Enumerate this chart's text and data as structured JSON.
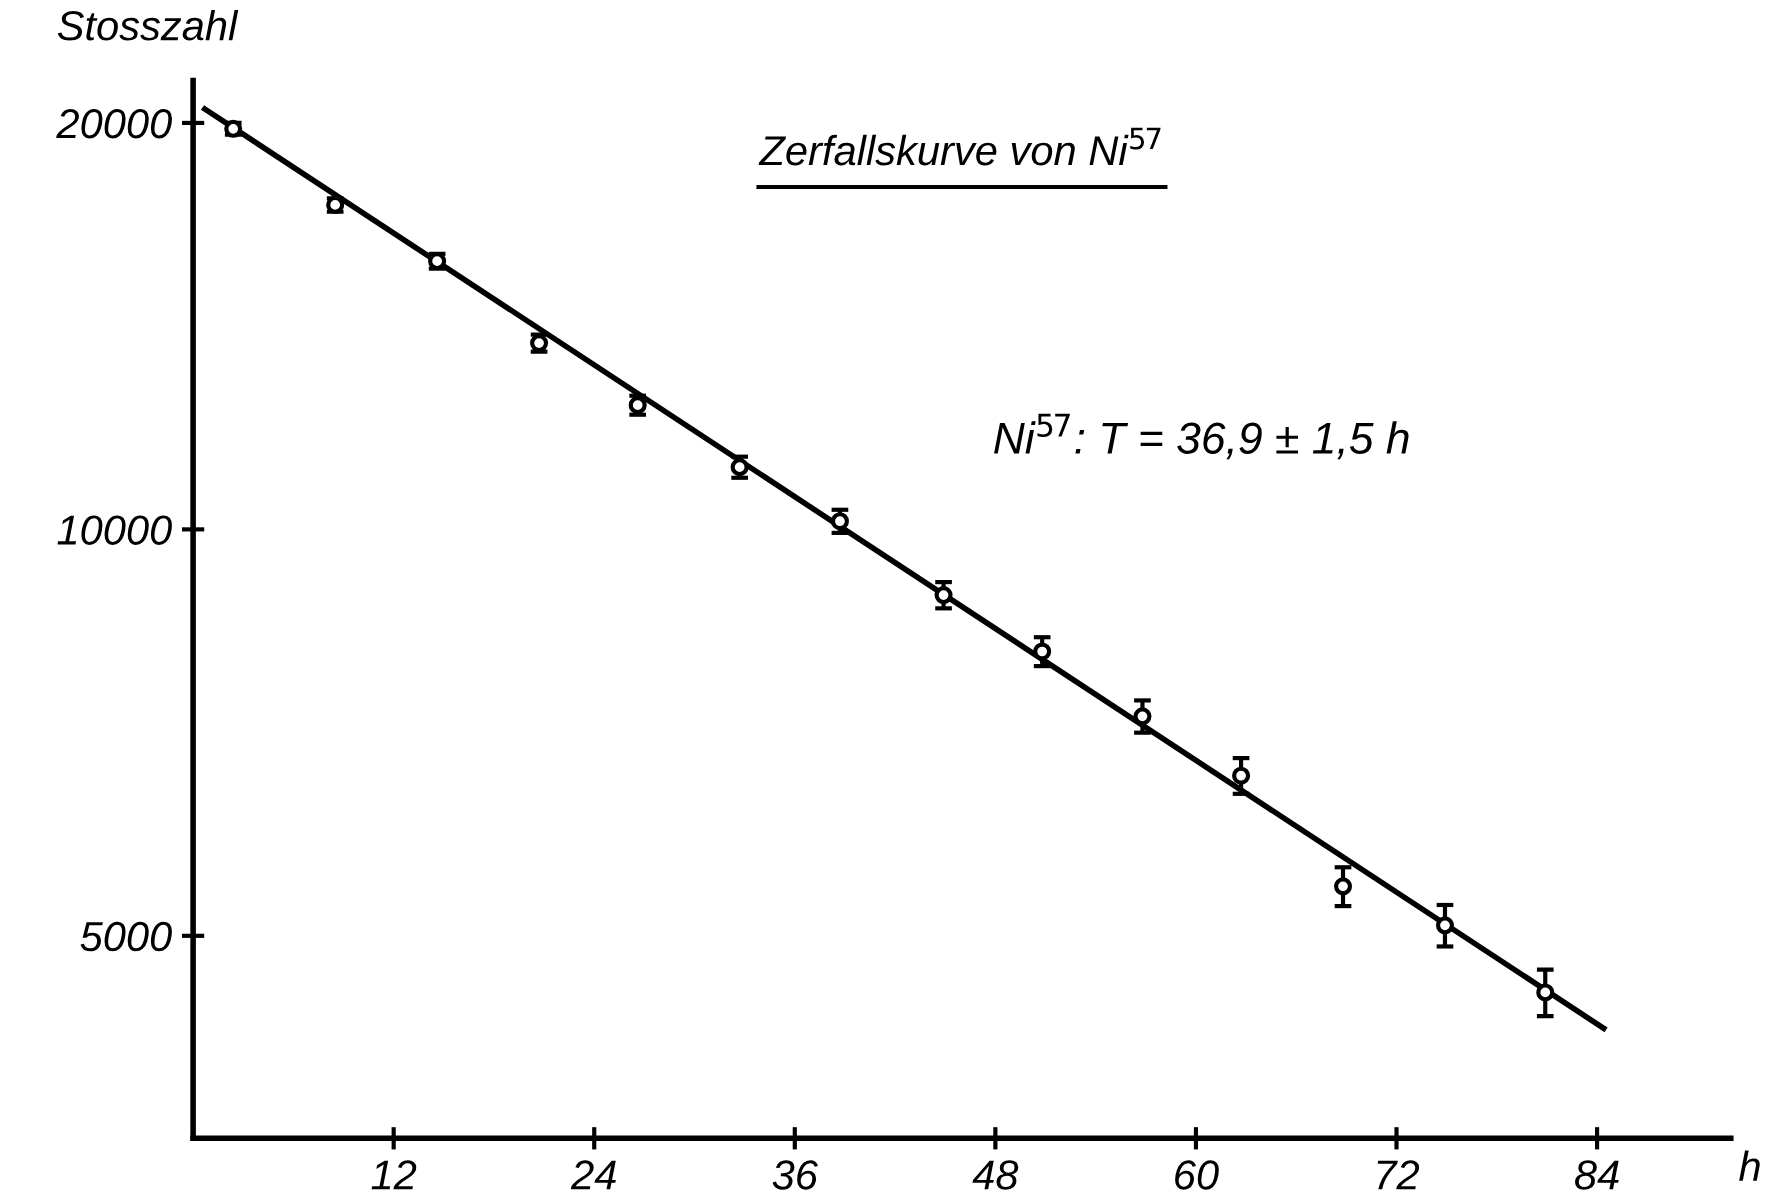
{
  "chart_data": {
    "type": "scatter",
    "title": "Zerfallskurve von Ni$^{57}$",
    "xlabel": "h",
    "ylabel": "Stosszahl",
    "annotations": [
      "Ni$^{57}$: T = 36,9 ± 1,5 h"
    ],
    "log": "y",
    "xlim": [
      0,
      92
    ],
    "ylim": [
      3540,
      21500
    ],
    "xticks": [
      12,
      24,
      36,
      48,
      60,
      72,
      84
    ],
    "yticks": [
      5000,
      10000,
      20000
    ],
    "grid": false,
    "legend": false,
    "tick_labels": true,
    "series": [
      {
        "color": "#000000",
        "marker": "circle",
        "x": [
          2.4,
          8.5,
          14.6,
          20.7,
          26.6,
          32.7,
          38.7,
          44.9,
          50.8,
          56.8,
          62.7,
          68.8,
          74.9,
          80.9
        ],
        "values": [
          19800,
          17390,
          15800,
          13740,
          12360,
          11120,
          10140,
          8940,
          8120,
          7270,
          6570,
          5440,
          5090,
          4540
        ],
        "errors": [
          200,
          200,
          200,
          200,
          200,
          200,
          200,
          200,
          200,
          200,
          200,
          180,
          180,
          180
        ]
      },
      {
        "type": "line",
        "color": "#000000",
        "line_style": "solid",
        "marker": "none",
        "x": [
          0.7,
          84.4
        ],
        "values": [
          20480,
          4270
        ]
      }
    ]
  }
}
